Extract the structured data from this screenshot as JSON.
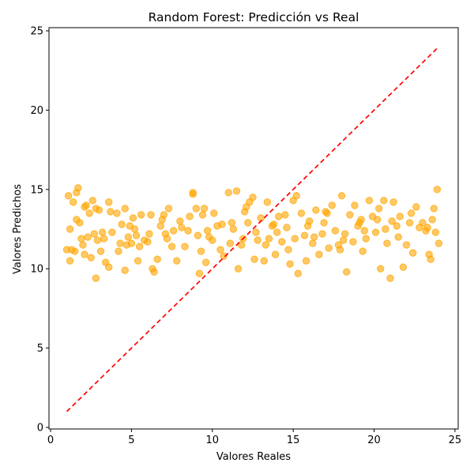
{
  "chart_data": {
    "type": "scatter",
    "title": "Random Forest: Predicción vs Real",
    "xlabel": "Valores Reales",
    "ylabel": "Valores Predichos",
    "xlim": [
      -0.1,
      25.2
    ],
    "ylim": [
      -0.1,
      25.2
    ],
    "xticks": [
      0,
      5,
      10,
      15,
      20,
      25
    ],
    "yticks": [
      0,
      5,
      10,
      15,
      20,
      25
    ],
    "grid": false,
    "legend": "none",
    "colors": {
      "points": "#FFA500",
      "reference_line": "#FF0000"
    },
    "series": [
      {
        "type": "scatter",
        "points": [
          [
            1.1,
            14.6
          ],
          [
            1.2,
            12.5
          ],
          [
            1.3,
            11.2
          ],
          [
            1.0,
            11.2
          ],
          [
            1.2,
            10.5
          ],
          [
            1.4,
            14.2
          ],
          [
            1.7,
            15.1
          ],
          [
            1.6,
            14.8
          ],
          [
            1.6,
            13.1
          ],
          [
            1.8,
            12.9
          ],
          [
            1.5,
            11.1
          ],
          [
            1.9,
            11.9
          ],
          [
            2.0,
            11.5
          ],
          [
            2.1,
            10.9
          ],
          [
            2.2,
            14.0
          ],
          [
            2.4,
            13.5
          ],
          [
            2.6,
            14.3
          ],
          [
            2.8,
            13.8
          ],
          [
            2.7,
            12.2
          ],
          [
            2.9,
            11.8
          ],
          [
            2.5,
            10.7
          ],
          [
            2.8,
            9.4
          ],
          [
            3.1,
            11.1
          ],
          [
            3.2,
            12.3
          ],
          [
            3.4,
            10.4
          ],
          [
            3.6,
            10.1
          ],
          [
            3.8,
            12.3
          ],
          [
            3.7,
            13.6
          ],
          [
            3.6,
            14.2
          ],
          [
            4.1,
            13.5
          ],
          [
            4.3,
            11.6
          ],
          [
            4.4,
            12.8
          ],
          [
            4.6,
            13.8
          ],
          [
            4.7,
            11.5
          ],
          [
            4.8,
            12.0
          ],
          [
            4.6,
            9.9
          ],
          [
            5.0,
            11.6
          ],
          [
            5.1,
            13.2
          ],
          [
            5.3,
            12.1
          ],
          [
            5.4,
            10.5
          ],
          [
            5.6,
            13.4
          ],
          [
            5.8,
            11.8
          ],
          [
            6.1,
            12.2
          ],
          [
            6.2,
            13.4
          ],
          [
            6.3,
            10.0
          ],
          [
            6.4,
            9.8
          ],
          [
            6.6,
            10.6
          ],
          [
            6.8,
            12.7
          ],
          [
            6.9,
            13.1
          ],
          [
            7.1,
            12.2
          ],
          [
            7.3,
            13.8
          ],
          [
            7.5,
            11.4
          ],
          [
            7.6,
            12.4
          ],
          [
            7.8,
            10.5
          ],
          [
            8.1,
            12.6
          ],
          [
            8.3,
            11.4
          ],
          [
            8.6,
            13.3
          ],
          [
            8.8,
            14.8
          ],
          [
            8.8,
            14.7
          ],
          [
            9.0,
            13.8
          ],
          [
            9.1,
            12.1
          ],
          [
            9.2,
            9.7
          ],
          [
            9.3,
            11.1
          ],
          [
            9.5,
            13.8
          ],
          [
            9.6,
            10.4
          ],
          [
            9.8,
            12.0
          ],
          [
            10.1,
            13.5
          ],
          [
            10.3,
            12.7
          ],
          [
            10.5,
            11.2
          ],
          [
            10.7,
            10.8
          ],
          [
            11.0,
            14.8
          ],
          [
            11.1,
            11.6
          ],
          [
            11.3,
            12.5
          ],
          [
            11.5,
            14.9
          ],
          [
            11.6,
            10.0
          ],
          [
            11.8,
            11.5
          ],
          [
            12.0,
            13.6
          ],
          [
            12.2,
            12.9
          ],
          [
            12.3,
            14.2
          ],
          [
            12.5,
            14.5
          ],
          [
            12.6,
            10.6
          ],
          [
            12.8,
            11.8
          ],
          [
            13.0,
            13.2
          ],
          [
            13.2,
            10.5
          ],
          [
            13.4,
            14.2
          ],
          [
            13.5,
            11.9
          ],
          [
            13.7,
            12.7
          ],
          [
            13.9,
            10.9
          ],
          [
            14.1,
            13.3
          ],
          [
            14.3,
            11.7
          ],
          [
            14.5,
            13.4
          ],
          [
            14.6,
            12.6
          ],
          [
            14.8,
            10.3
          ],
          [
            15.0,
            14.3
          ],
          [
            15.2,
            14.6
          ],
          [
            15.3,
            9.7
          ],
          [
            15.5,
            13.5
          ],
          [
            15.7,
            12.1
          ],
          [
            15.8,
            10.5
          ],
          [
            16.0,
            13.0
          ],
          [
            16.2,
            11.6
          ],
          [
            16.4,
            13.7
          ],
          [
            16.6,
            10.9
          ],
          [
            16.8,
            12.2
          ],
          [
            17.0,
            13.6
          ],
          [
            17.2,
            11.3
          ],
          [
            17.4,
            14.0
          ],
          [
            17.6,
            12.4
          ],
          [
            17.8,
            11.5
          ],
          [
            18.0,
            14.6
          ],
          [
            18.2,
            12.2
          ],
          [
            18.3,
            9.8
          ],
          [
            18.5,
            13.4
          ],
          [
            18.7,
            11.7
          ],
          [
            18.8,
            14.0
          ],
          [
            19.0,
            12.7
          ],
          [
            19.2,
            13.1
          ],
          [
            19.3,
            11.1
          ],
          [
            19.5,
            11.9
          ],
          [
            19.7,
            14.3
          ],
          [
            19.9,
            13.3
          ],
          [
            20.1,
            12.3
          ],
          [
            20.3,
            13.8
          ],
          [
            20.4,
            10.0
          ],
          [
            20.6,
            14.3
          ],
          [
            20.8,
            11.6
          ],
          [
            21.0,
            9.4
          ],
          [
            21.2,
            14.2
          ],
          [
            21.4,
            12.7
          ],
          [
            21.6,
            13.3
          ],
          [
            21.8,
            10.1
          ],
          [
            22.0,
            11.5
          ],
          [
            22.2,
            12.9
          ],
          [
            22.4,
            11.0
          ],
          [
            22.6,
            13.9
          ],
          [
            22.8,
            12.6
          ],
          [
            23.0,
            12.9
          ],
          [
            23.2,
            12.4
          ],
          [
            23.4,
            10.9
          ],
          [
            23.5,
            10.6
          ],
          [
            23.7,
            13.8
          ],
          [
            23.8,
            12.3
          ],
          [
            23.9,
            15.0
          ],
          [
            24.0,
            11.6
          ],
          [
            2.1,
            13.9
          ],
          [
            3.0,
            13.7
          ],
          [
            4.2,
            11.1
          ],
          [
            5.5,
            11.4
          ],
          [
            7.0,
            13.4
          ],
          [
            8.0,
            13.0
          ],
          [
            9.4,
            13.4
          ],
          [
            10.0,
            11.8
          ],
          [
            11.2,
            12.9
          ],
          [
            12.1,
            13.9
          ],
          [
            13.3,
            11.5
          ],
          [
            14.0,
            12.3
          ],
          [
            15.1,
            11.9
          ],
          [
            16.3,
            12.0
          ],
          [
            17.1,
            13.5
          ],
          [
            18.1,
            11.8
          ],
          [
            19.4,
            12.4
          ],
          [
            20.2,
            13.1
          ],
          [
            21.5,
            12.0
          ],
          [
            22.3,
            13.5
          ],
          [
            23.3,
            12.6
          ],
          [
            6.0,
            11.7
          ],
          [
            8.5,
            12.4
          ],
          [
            10.6,
            12.8
          ],
          [
            12.7,
            12.3
          ],
          [
            14.7,
            11.2
          ],
          [
            16.9,
            12.9
          ],
          [
            19.1,
            12.9
          ],
          [
            21.1,
            13.0
          ],
          [
            23.6,
            13.1
          ],
          [
            4.9,
            12.7
          ],
          [
            11.9,
            11.9
          ],
          [
            17.9,
            11.2
          ],
          [
            2.3,
            12.0
          ],
          [
            3.3,
            11.9
          ],
          [
            5.2,
            12.5
          ],
          [
            7.2,
            11.9
          ],
          [
            9.7,
            12.4
          ],
          [
            13.8,
            12.8
          ],
          [
            15.9,
            12.7
          ],
          [
            20.7,
            12.5
          ]
        ]
      },
      {
        "type": "line",
        "style": "dashed",
        "points": [
          [
            1.0,
            1.0
          ],
          [
            24.0,
            24.0
          ]
        ]
      }
    ]
  }
}
